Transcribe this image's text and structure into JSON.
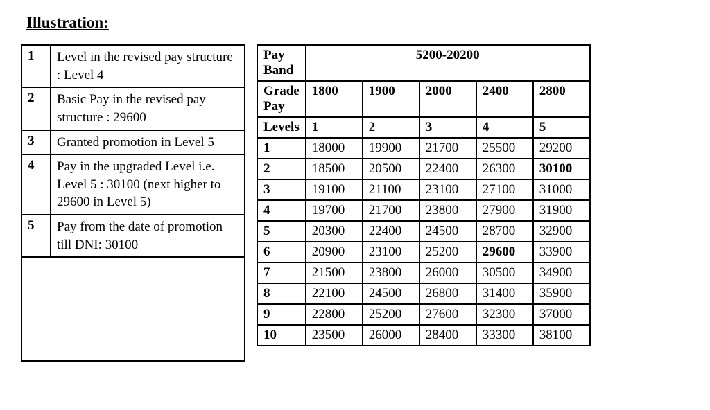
{
  "heading": "Illustration:",
  "left_table": {
    "rows": [
      {
        "num": "1",
        "desc": "Level in the revised pay structure : Level 4"
      },
      {
        "num": "2",
        "desc": "Basic Pay in the revised pay structure : 29600"
      },
      {
        "num": "3",
        "desc": "Granted promotion in Level 5"
      },
      {
        "num": "4",
        "desc": "Pay in the upgraded Level i.e.\nLevel 5 : 30100 (next higher to 29600 in Level 5)"
      },
      {
        "num": "5",
        "desc": "Pay from the date of promotion till DNI: 30100"
      }
    ]
  },
  "right_table": {
    "pay_band_label": "Pay Band",
    "pay_band_value": "5200-20200",
    "grade_pay_label": "Grade Pay",
    "grade_pay_values": [
      "1800",
      "1900",
      "2000",
      "2400",
      "2800"
    ],
    "levels_label": "Levels",
    "levels_values": [
      "1",
      "2",
      "3",
      "4",
      "5"
    ],
    "data_rows": [
      {
        "idx": "1",
        "cells": [
          "18000",
          "19900",
          "21700",
          "25500",
          "29200"
        ],
        "bold": []
      },
      {
        "idx": "2",
        "cells": [
          "18500",
          "20500",
          "22400",
          "26300",
          "30100"
        ],
        "bold": [
          4
        ]
      },
      {
        "idx": "3",
        "cells": [
          "19100",
          "21100",
          "23100",
          "27100",
          "31000"
        ],
        "bold": []
      },
      {
        "idx": "4",
        "cells": [
          "19700",
          "21700",
          "23800",
          "27900",
          "31900"
        ],
        "bold": []
      },
      {
        "idx": "5",
        "cells": [
          "20300",
          "22400",
          "24500",
          "28700",
          "32900"
        ],
        "bold": []
      },
      {
        "idx": "6",
        "cells": [
          "20900",
          "23100",
          "25200",
          "29600",
          "33900"
        ],
        "bold": [
          3
        ]
      },
      {
        "idx": "7",
        "cells": [
          "21500",
          "23800",
          "26000",
          "30500",
          "34900"
        ],
        "bold": []
      },
      {
        "idx": "8",
        "cells": [
          "22100",
          "24500",
          "26800",
          "31400",
          "35900"
        ],
        "bold": []
      },
      {
        "idx": "9",
        "cells": [
          "22800",
          "25200",
          "27600",
          "32300",
          "37000"
        ],
        "bold": []
      },
      {
        "idx": "10",
        "cells": [
          "23500",
          "26000",
          "28400",
          "33300",
          "38100"
        ],
        "bold": []
      }
    ]
  }
}
